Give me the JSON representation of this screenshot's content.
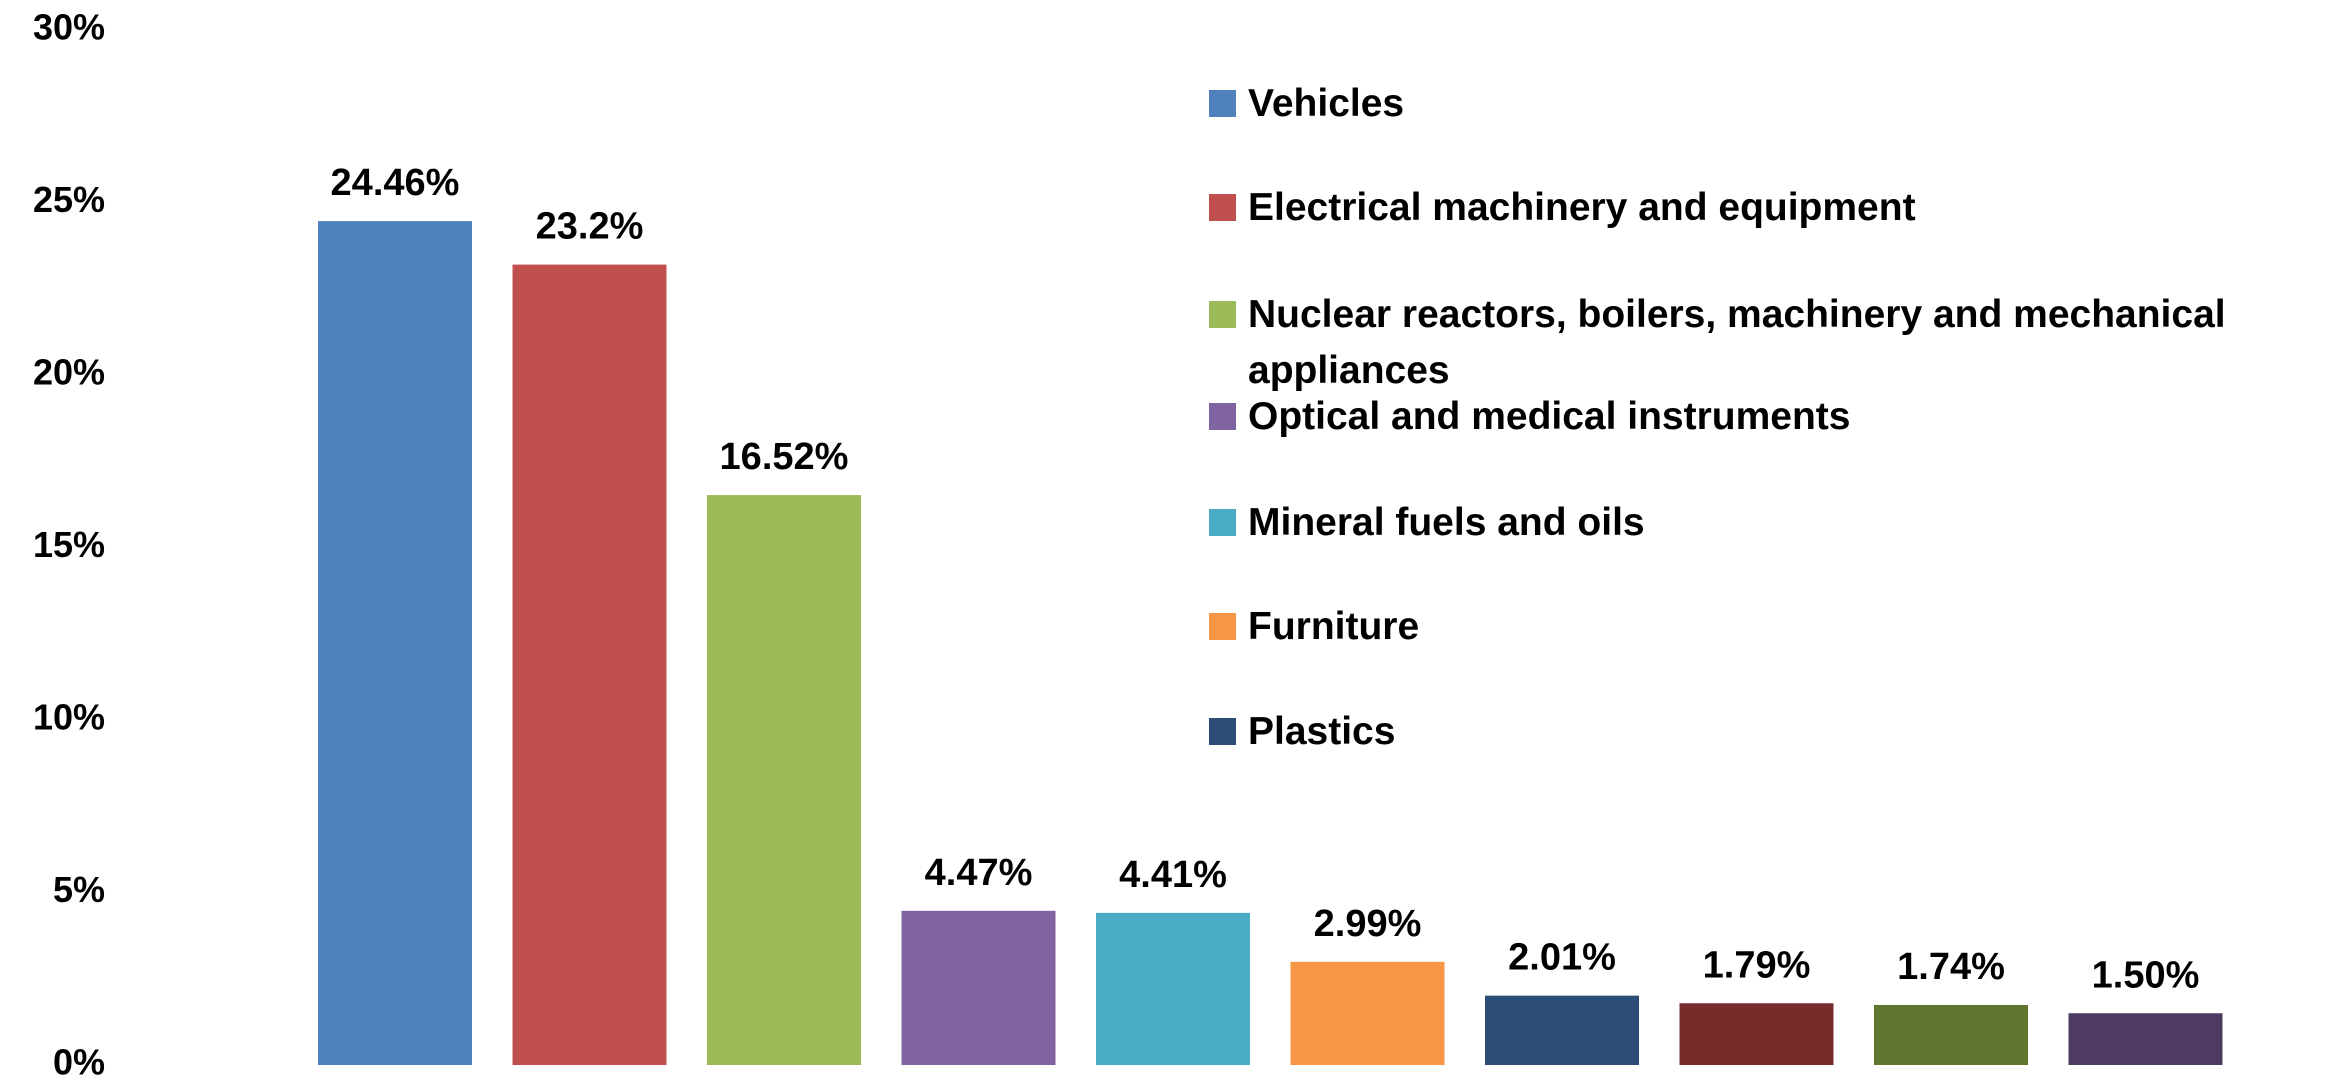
{
  "chart_data": {
    "type": "bar",
    "categories": [
      "Vehicles",
      "Electrical machinery and equipment",
      "Nuclear reactors, boilers, machinery and mechanical appliances",
      "Optical and medical instruments",
      "Mineral fuels and oils",
      "Furniture",
      "Plastics",
      null,
      null,
      null
    ],
    "values": [
      24.46,
      23.2,
      16.52,
      4.47,
      4.41,
      2.99,
      2.01,
      1.79,
      1.74,
      1.5
    ],
    "value_labels": [
      "24.46%",
      "23.2%",
      "16.52%",
      "4.47%",
      "4.41%",
      "2.99%",
      "2.01%",
      "1.79%",
      "1.74%",
      "1.50%"
    ],
    "colors": [
      "#4f81bd",
      "#c0504d",
      "#9bbb59",
      "#8064a2",
      "#4bacc6",
      "#f79646",
      "#2c4d75",
      "#772c2a",
      "#5f7530",
      "#4d3b62"
    ],
    "ylim": [
      0,
      30
    ],
    "yticks": [
      {
        "value": 0,
        "label": "0%"
      },
      {
        "value": 5,
        "label": "5%"
      },
      {
        "value": 10,
        "label": "10%"
      },
      {
        "value": 15,
        "label": "15%"
      },
      {
        "value": 20,
        "label": "20%"
      },
      {
        "value": 25,
        "label": "25%"
      },
      {
        "value": 30,
        "label": "30%"
      }
    ],
    "grid": false,
    "legend": "upper right"
  }
}
